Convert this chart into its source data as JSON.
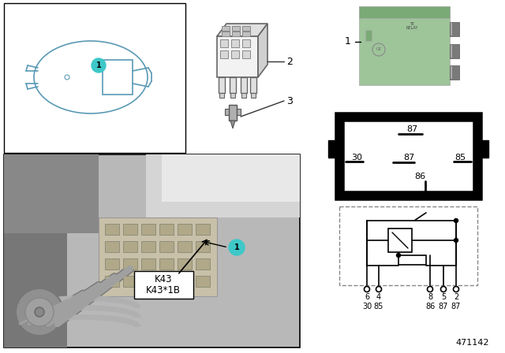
{
  "doc_number": "471142",
  "bg_color": "#ffffff",
  "relay_green": "#9ec49a",
  "relay_green_dark": "#7aaa76",
  "relay_gray": "#8a8a8a",
  "teal": "#3ec8c8",
  "car_line_color": "#5a9ab5",
  "line_gray": "#999999",
  "k43": "K43",
  "k43b": "K43*1B",
  "circuit_pin_nums": [
    "6",
    "4",
    "8",
    "5",
    "2"
  ],
  "circuit_pin_labels": [
    "30",
    "85",
    "86",
    "87",
    "87"
  ]
}
